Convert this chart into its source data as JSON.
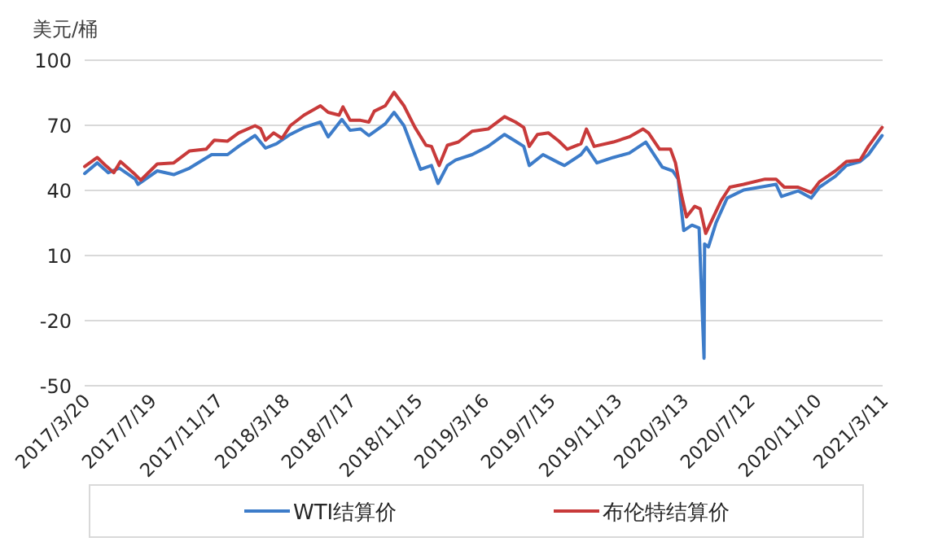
{
  "chart_data": {
    "type": "line",
    "ylabel": "美元/桶",
    "legend": "bottom",
    "grid": "y",
    "line_style": "solid",
    "marker": "none",
    "xlim": [
      "2017-03-20",
      "2021-03-11"
    ],
    "xticks": [
      {
        "value": "2017-03-20",
        "label": "2017/3/20"
      },
      {
        "value": "2017-07-19",
        "label": "2017/7/19"
      },
      {
        "value": "2017-11-17",
        "label": "2017/11/17"
      },
      {
        "value": "2018-03-18",
        "label": "2018/3/18"
      },
      {
        "value": "2018-07-17",
        "label": "2018/7/17"
      },
      {
        "value": "2018-11-15",
        "label": "2018/11/15"
      },
      {
        "value": "2019-03-16",
        "label": "2019/3/16"
      },
      {
        "value": "2019-07-15",
        "label": "2019/7/15"
      },
      {
        "value": "2019-11-13",
        "label": "2019/11/13"
      },
      {
        "value": "2020-03-13",
        "label": "2020/3/13"
      },
      {
        "value": "2020-07-12",
        "label": "2020/7/12"
      },
      {
        "value": "2020-11-10",
        "label": "2020/11/10"
      },
      {
        "value": "2021-03-11",
        "label": "2021/3/11"
      }
    ],
    "ylim": [
      -50,
      100
    ],
    "yticks": [
      -50,
      -20,
      10,
      40,
      70,
      100
    ],
    "series": [
      {
        "name": "WTI结算价",
        "color": "#3d7cc9",
        "x": [
          "2017-03-20",
          "2017-04-12",
          "2017-05-02",
          "2017-05-22",
          "2017-06-20",
          "2017-06-25",
          "2017-07-30",
          "2017-08-29",
          "2017-09-27",
          "2017-11-06",
          "2017-12-05",
          "2017-12-25",
          "2018-01-24",
          "2018-02-12",
          "2018-03-04",
          "2018-03-29",
          "2018-04-23",
          "2018-05-23",
          "2018-06-06",
          "2018-07-01",
          "2018-07-16",
          "2018-08-04",
          "2018-08-19",
          "2018-09-18",
          "2018-10-04",
          "2018-10-22",
          "2018-11-21",
          "2018-12-11",
          "2018-12-23",
          "2019-01-09",
          "2019-01-24",
          "2019-02-23",
          "2019-03-24",
          "2019-04-23",
          "2019-05-13",
          "2019-05-28",
          "2019-06-07",
          "2019-07-02",
          "2019-07-31",
          "2019-08-10",
          "2019-09-09",
          "2019-09-19",
          "2019-10-08",
          "2019-11-07",
          "2019-12-06",
          "2020-01-05",
          "2020-02-04",
          "2020-02-23",
          "2020-03-04",
          "2020-03-14",
          "2020-03-29",
          "2020-04-11",
          "2020-04-20",
          "2020-04-21",
          "2020-04-28",
          "2020-05-12",
          "2020-06-01",
          "2020-07-01",
          "2020-08-29",
          "2020-09-08",
          "2020-10-08",
          "2020-11-01",
          "2020-11-16",
          "2020-12-15",
          "2021-01-04",
          "2021-01-29",
          "2021-02-13",
          "2021-03-10"
        ],
        "values": [
          47.8,
          52.7,
          48.2,
          50.3,
          45.2,
          42.8,
          49,
          47.3,
          50.3,
          56.5,
          56.5,
          60.3,
          65.3,
          59.5,
          61.5,
          65.8,
          69,
          71.5,
          64.7,
          72.7,
          67.7,
          68.3,
          65.3,
          70.7,
          76,
          69.8,
          49.7,
          51.5,
          43.2,
          51.5,
          54,
          56.5,
          60.3,
          65.8,
          62.7,
          60.3,
          51.5,
          56.5,
          52.7,
          51.5,
          56.5,
          59.8,
          52.7,
          55.2,
          57.2,
          62.3,
          50.7,
          49,
          45.2,
          21.5,
          24,
          22.7,
          -37.3,
          15.3,
          14,
          25.2,
          36.5,
          40.2,
          42.8,
          37.2,
          39.8,
          36.5,
          41.5,
          46.5,
          51.5,
          53.3,
          56.5,
          65.3
        ]
      },
      {
        "name": "布伦特结算价",
        "color": "#c83a3a",
        "x": [
          "2017-03-20",
          "2017-04-12",
          "2017-04-27",
          "2017-05-12",
          "2017-05-24",
          "2017-06-20",
          "2017-06-30",
          "2017-07-30",
          "2017-08-29",
          "2017-09-27",
          "2017-10-27",
          "2017-11-11",
          "2017-12-05",
          "2017-12-25",
          "2018-01-24",
          "2018-02-03",
          "2018-02-12",
          "2018-02-27",
          "2018-03-14",
          "2018-03-29",
          "2018-04-23",
          "2018-05-23",
          "2018-06-06",
          "2018-06-26",
          "2018-07-03",
          "2018-07-16",
          "2018-08-04",
          "2018-08-19",
          "2018-08-29",
          "2018-09-18",
          "2018-10-04",
          "2018-10-22",
          "2018-11-11",
          "2018-12-01",
          "2018-12-11",
          "2018-12-25",
          "2019-01-09",
          "2019-01-29",
          "2019-02-23",
          "2019-03-24",
          "2019-04-23",
          "2019-05-13",
          "2019-05-28",
          "2019-06-07",
          "2019-06-22",
          "2019-07-12",
          "2019-07-31",
          "2019-08-15",
          "2019-09-09",
          "2019-09-19",
          "2019-10-03",
          "2019-11-07",
          "2019-12-06",
          "2019-12-31",
          "2020-01-10",
          "2020-01-30",
          "2020-02-19",
          "2020-02-28",
          "2020-03-09",
          "2020-03-19",
          "2020-04-03",
          "2020-04-13",
          "2020-04-23",
          "2020-05-07",
          "2020-05-21",
          "2020-06-06",
          "2020-07-01",
          "2020-08-09",
          "2020-08-29",
          "2020-09-13",
          "2020-10-08",
          "2020-11-01",
          "2020-11-16",
          "2020-12-15",
          "2021-01-04",
          "2021-01-29",
          "2021-02-13",
          "2021-03-10"
        ],
        "values": [
          51,
          55.2,
          51.5,
          48.2,
          53.3,
          47.3,
          44.7,
          52.2,
          52.7,
          58.2,
          59,
          63.2,
          62.7,
          66.5,
          69.8,
          68.5,
          63.2,
          66.5,
          64,
          69.8,
          74.7,
          79,
          76,
          74.7,
          78.5,
          72.3,
          72.3,
          71.5,
          76.5,
          79,
          85.2,
          79,
          69,
          60.8,
          60.3,
          51.5,
          60.8,
          62.3,
          67.3,
          68.3,
          74,
          71.5,
          69,
          60.3,
          65.8,
          66.5,
          62.7,
          59,
          61.5,
          68.3,
          60.3,
          62.3,
          64.7,
          68.3,
          66.5,
          59,
          59,
          52.7,
          39,
          27.8,
          32.7,
          31.5,
          20.2,
          27.8,
          35.3,
          41.5,
          42.8,
          45.2,
          45.2,
          41.5,
          41.5,
          39,
          44,
          49,
          53.3,
          54,
          60.3,
          69
        ]
      }
    ]
  }
}
